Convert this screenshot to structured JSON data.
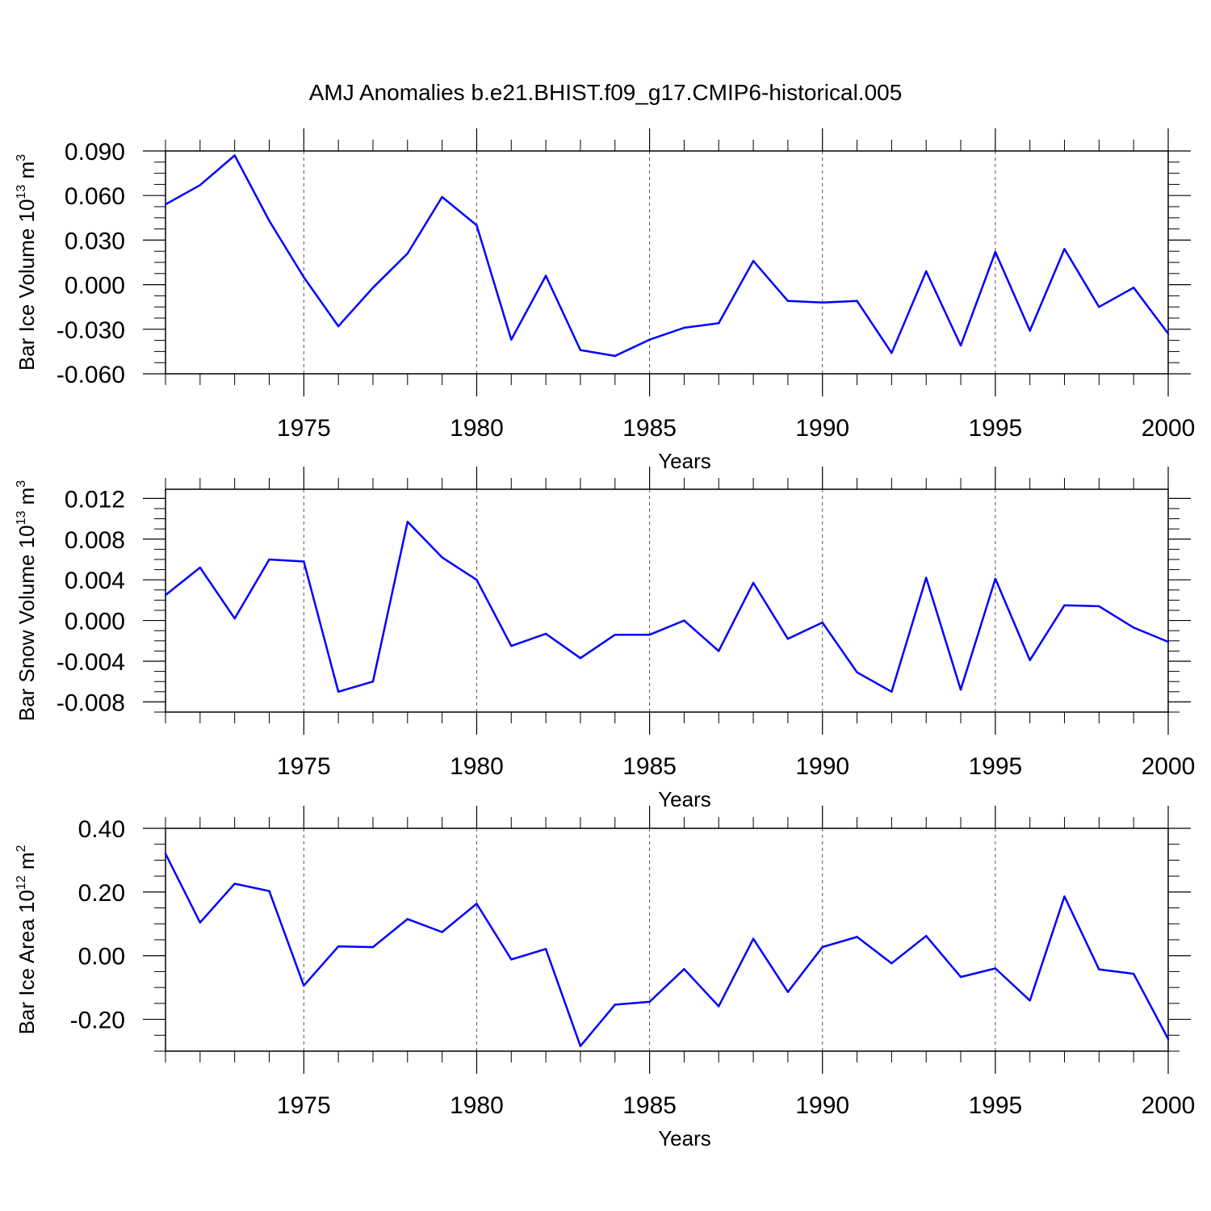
{
  "title": "AMJ Anomalies b.e21.BHIST.f09_g17.CMIP6-historical.005",
  "colors": {
    "line": "#0000ff",
    "axis": "#000000",
    "grid": "#555555"
  },
  "chart_data": [
    {
      "type": "line",
      "series_name": "Bar Ice Volume",
      "xlabel": "Years",
      "ylabel": {
        "prefix": "Bar Ice Volume 10",
        "exp": "13",
        "unit": " m",
        "unit_exp": "3"
      },
      "xlim": [
        1971,
        2000
      ],
      "ylim": [
        -0.06,
        0.09
      ],
      "yticks": [
        "0.090",
        "0.060",
        "0.030",
        "0.000",
        "-0.030",
        "-0.060"
      ],
      "ytick_values": [
        0.09,
        0.06,
        0.03,
        0.0,
        -0.03,
        -0.06
      ],
      "xticks": [
        "1975",
        "1980",
        "1985",
        "1990",
        "1995",
        "2000"
      ],
      "xtick_values": [
        1975,
        1980,
        1985,
        1990,
        1995,
        2000
      ],
      "grid": "vertical dashed at major x ticks",
      "x": [
        1971,
        1972,
        1973,
        1974,
        1975,
        1976,
        1977,
        1978,
        1979,
        1980,
        1981,
        1982,
        1983,
        1984,
        1985,
        1986,
        1987,
        1988,
        1989,
        1990,
        1991,
        1992,
        1993,
        1994,
        1995,
        1996,
        1997,
        1998,
        1999,
        2000
      ],
      "values": [
        0.054,
        0.067,
        0.087,
        0.043,
        0.005,
        -0.028,
        -0.002,
        0.021,
        0.059,
        0.04,
        -0.037,
        0.006,
        -0.044,
        -0.048,
        -0.037,
        -0.029,
        -0.026,
        0.016,
        -0.011,
        -0.012,
        -0.011,
        -0.046,
        0.009,
        -0.041,
        0.022,
        -0.031,
        0.024,
        -0.015,
        -0.002,
        -0.033
      ]
    },
    {
      "type": "line",
      "series_name": "Bar Snow Volume",
      "xlabel": "Years",
      "ylabel": {
        "prefix": "Bar Snow Volume 10",
        "exp": "13",
        "unit": " m",
        "unit_exp": "3"
      },
      "xlim": [
        1971,
        2000
      ],
      "ylim": [
        -0.009,
        0.0129
      ],
      "yticks": [
        "0.012",
        "0.008",
        "0.004",
        "0.000",
        "-0.004",
        "-0.008"
      ],
      "ytick_values": [
        0.012,
        0.008,
        0.004,
        0.0,
        -0.004,
        -0.008
      ],
      "xticks": [
        "1975",
        "1980",
        "1985",
        "1990",
        "1995",
        "2000"
      ],
      "xtick_values": [
        1975,
        1980,
        1985,
        1990,
        1995,
        2000
      ],
      "grid": "vertical dashed at major x ticks",
      "x": [
        1971,
        1972,
        1973,
        1974,
        1975,
        1976,
        1977,
        1978,
        1979,
        1980,
        1981,
        1982,
        1983,
        1984,
        1985,
        1986,
        1987,
        1988,
        1989,
        1990,
        1991,
        1992,
        1993,
        1994,
        1995,
        1996,
        1997,
        1998,
        1999,
        2000
      ],
      "values": [
        0.0025,
        0.0052,
        0.0002,
        0.006,
        0.0058,
        -0.007,
        -0.006,
        0.0097,
        0.0062,
        0.004,
        -0.0025,
        -0.0013,
        -0.0037,
        -0.0014,
        -0.0014,
        0.0,
        -0.003,
        0.0037,
        -0.0018,
        -0.0002,
        -0.0051,
        -0.007,
        0.0042,
        -0.0068,
        0.0041,
        -0.0039,
        0.0015,
        0.0014,
        -0.0007,
        -0.0021
      ]
    },
    {
      "type": "line",
      "series_name": "Bar Ice Area",
      "xlabel": "Years",
      "ylabel": {
        "prefix": "Bar Ice Area 10",
        "exp": "12",
        "unit": " m",
        "unit_exp": "2"
      },
      "xlim": [
        1971,
        2000
      ],
      "ylim": [
        -0.3,
        0.4
      ],
      "yticks": [
        "0.40",
        "0.20",
        "0.00",
        "-0.20"
      ],
      "ytick_values": [
        0.4,
        0.2,
        0.0,
        -0.2
      ],
      "xticks": [
        "1975",
        "1980",
        "1985",
        "1990",
        "1995",
        "2000"
      ],
      "xtick_values": [
        1975,
        1980,
        1985,
        1990,
        1995,
        2000
      ],
      "grid": "vertical dashed at major x ticks",
      "x": [
        1971,
        1972,
        1973,
        1974,
        1975,
        1976,
        1977,
        1978,
        1979,
        1980,
        1981,
        1982,
        1983,
        1984,
        1985,
        1986,
        1987,
        1988,
        1989,
        1990,
        1991,
        1992,
        1993,
        1994,
        1995,
        1996,
        1997,
        1998,
        1999,
        2000
      ],
      "values": [
        0.32,
        0.104,
        0.226,
        0.203,
        -0.094,
        0.029,
        0.027,
        0.115,
        0.074,
        0.163,
        -0.012,
        0.021,
        -0.284,
        -0.154,
        -0.145,
        -0.042,
        -0.159,
        0.053,
        -0.114,
        0.027,
        0.059,
        -0.024,
        0.062,
        -0.067,
        -0.04,
        -0.141,
        0.186,
        -0.043,
        -0.057,
        -0.262
      ]
    }
  ]
}
